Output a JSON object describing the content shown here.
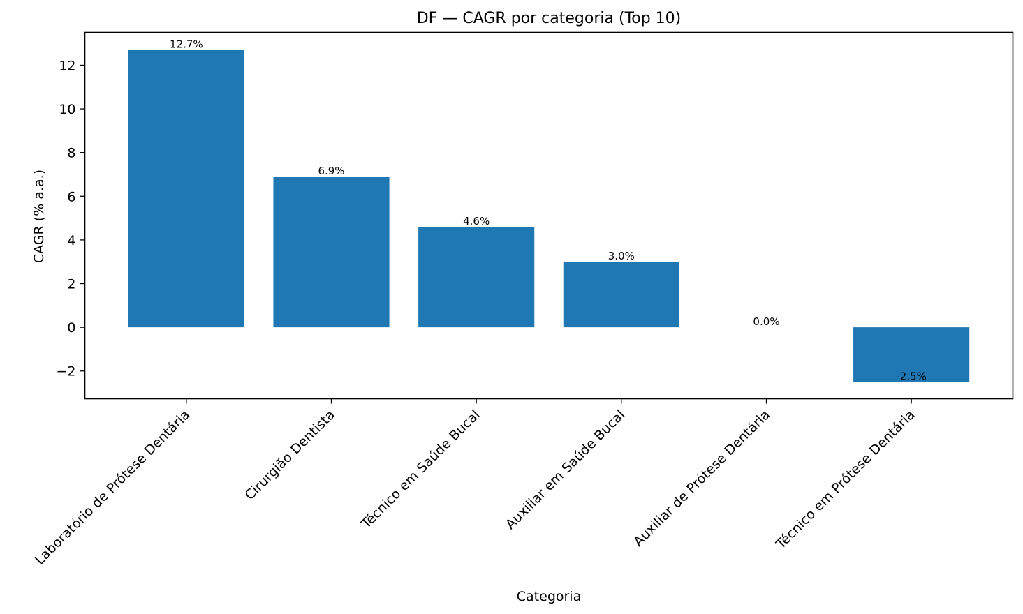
{
  "chart_data": {
    "type": "bar",
    "title": "DF — CAGR por categoria (Top 10)",
    "xlabel": "Categoria",
    "ylabel": "CAGR (% a.a.)",
    "categories": [
      "Laboratório de Prótese Dentária",
      "Cirurgião Dentista",
      "Técnico em Saúde Bucal",
      "Auxiliar em Saúde Bucal",
      "Auxiliar de Prótese Dentária",
      "Técnico em Prótese Dentária"
    ],
    "values": [
      12.7,
      6.9,
      4.6,
      3.0,
      0.0,
      -2.5
    ],
    "data_labels": [
      "12.7%",
      "6.9%",
      "4.6%",
      "3.0%",
      "0.0%",
      "-2.5%"
    ],
    "yticks": [
      -2,
      0,
      2,
      4,
      6,
      8,
      10,
      12
    ],
    "ytick_labels": [
      "−2",
      "0",
      "2",
      "4",
      "6",
      "8",
      "10",
      "12"
    ],
    "ylim": [
      -3.27,
      13.5
    ],
    "grid": false,
    "bar_color": "#1f77b4"
  }
}
